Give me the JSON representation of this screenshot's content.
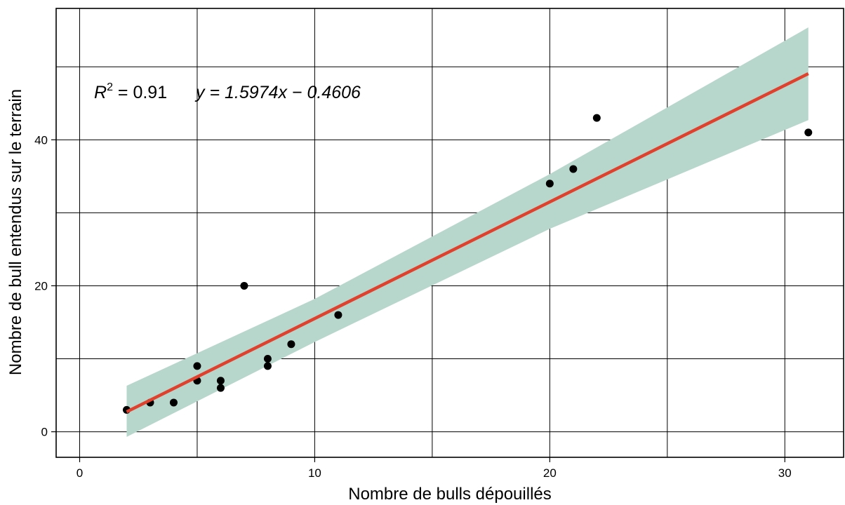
{
  "chart_data": {
    "type": "scatter",
    "xlabel": "Nombre de bulls dépouillés",
    "ylabel": "Nombre de bull entendus sur le terrain",
    "xlim": [
      -1,
      32.5
    ],
    "ylim": [
      -3.5,
      58
    ],
    "x_ticks": [
      0,
      10,
      20,
      30
    ],
    "y_ticks": [
      0,
      20,
      40
    ],
    "x_grid": [
      0,
      5,
      10,
      15,
      20,
      25,
      30
    ],
    "y_grid": [
      0,
      10,
      20,
      30,
      40,
      50
    ],
    "grid": true,
    "points": [
      {
        "x": 2,
        "y": 3
      },
      {
        "x": 3,
        "y": 4
      },
      {
        "x": 4,
        "y": 4
      },
      {
        "x": 5,
        "y": 7
      },
      {
        "x": 5,
        "y": 9
      },
      {
        "x": 6,
        "y": 6
      },
      {
        "x": 6,
        "y": 7
      },
      {
        "x": 7,
        "y": 20
      },
      {
        "x": 8,
        "y": 9
      },
      {
        "x": 8,
        "y": 10
      },
      {
        "x": 9,
        "y": 12
      },
      {
        "x": 11,
        "y": 16
      },
      {
        "x": 20,
        "y": 34
      },
      {
        "x": 21,
        "y": 36
      },
      {
        "x": 22,
        "y": 43
      },
      {
        "x": 31,
        "y": 41
      }
    ],
    "regression": {
      "slope": 1.5974,
      "intercept": -0.4606,
      "x_range": [
        2,
        31
      ],
      "confidence_band": [
        {
          "x": 2,
          "lower": -0.7,
          "upper": 6.3
        },
        {
          "x": 10,
          "lower": 12.3,
          "upper": 18.2
        },
        {
          "x": 20,
          "lower": 27.8,
          "upper": 35.3
        },
        {
          "x": 31,
          "lower": 42.7,
          "upper": 55.4
        }
      ]
    },
    "annotation": {
      "r2_label": "R",
      "r2_sup": "2",
      "r2_value": " = 0.91",
      "equation": "y = 1.5974x − 0.4606"
    },
    "colors": {
      "line": "#e0402c",
      "band": "#b7d6cc",
      "points": "#000000",
      "grid": "#000000"
    }
  }
}
